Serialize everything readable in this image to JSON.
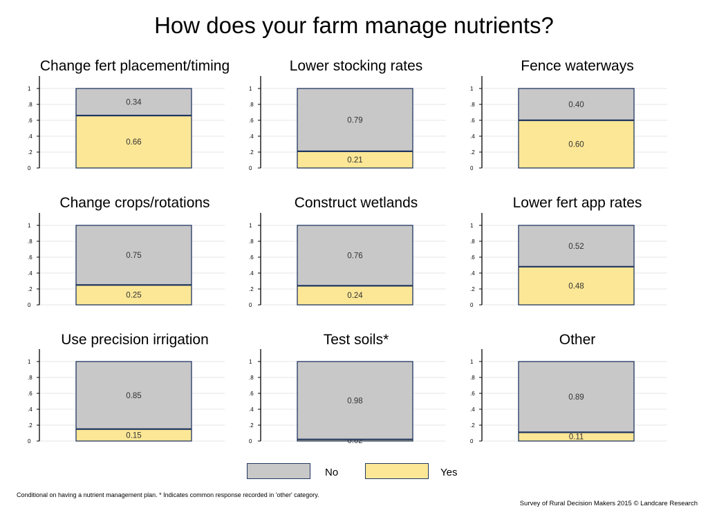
{
  "title": "How does your farm manage nutrients?",
  "colors": {
    "no": "#c8c8c8",
    "yes": "#fce796",
    "outline": "#1f3560",
    "axis": "#000000",
    "grid": "#e4e4e4"
  },
  "legend": [
    {
      "label": "No",
      "color": "#c8c8c8"
    },
    {
      "label": "Yes",
      "color": "#fce796"
    }
  ],
  "footnote": "Conditional on having a nutrient management plan. * Indicates common response recorded in 'other' category.",
  "credit": "Survey of Rural Decision Makers 2015 © Landcare Research",
  "chart_data": [
    {
      "type": "bar",
      "title": "Change fert placement/timing",
      "yticks": [
        "0",
        ".2",
        ".4",
        ".6",
        ".8",
        "1"
      ],
      "ylim": [
        0,
        1
      ],
      "grid": true,
      "stacked": true,
      "series": [
        {
          "name": "Yes",
          "value": 0.66,
          "label": "0.66"
        },
        {
          "name": "No",
          "value": 0.34,
          "label": "0.34"
        }
      ]
    },
    {
      "type": "bar",
      "title": "Lower stocking rates",
      "yticks": [
        "0",
        ".2",
        ".4",
        ".6",
        ".8",
        "1"
      ],
      "ylim": [
        0,
        1
      ],
      "grid": true,
      "stacked": true,
      "series": [
        {
          "name": "Yes",
          "value": 0.21,
          "label": "0.21"
        },
        {
          "name": "No",
          "value": 0.79,
          "label": "0.79"
        }
      ]
    },
    {
      "type": "bar",
      "title": "Fence waterways",
      "yticks": [
        "0",
        ".2",
        ".4",
        ".6",
        ".8",
        "1"
      ],
      "ylim": [
        0,
        1
      ],
      "grid": true,
      "stacked": true,
      "series": [
        {
          "name": "Yes",
          "value": 0.6,
          "label": "0.60"
        },
        {
          "name": "No",
          "value": 0.4,
          "label": "0.40"
        }
      ]
    },
    {
      "type": "bar",
      "title": "Change crops/rotations",
      "yticks": [
        "0",
        ".2",
        ".4",
        ".6",
        ".8",
        "1"
      ],
      "ylim": [
        0,
        1
      ],
      "grid": true,
      "stacked": true,
      "series": [
        {
          "name": "Yes",
          "value": 0.25,
          "label": "0.25"
        },
        {
          "name": "No",
          "value": 0.75,
          "label": "0.75"
        }
      ]
    },
    {
      "type": "bar",
      "title": "Construct wetlands",
      "yticks": [
        "0",
        ".2",
        ".4",
        ".6",
        ".8",
        "1"
      ],
      "ylim": [
        0,
        1
      ],
      "grid": true,
      "stacked": true,
      "series": [
        {
          "name": "Yes",
          "value": 0.24,
          "label": "0.24"
        },
        {
          "name": "No",
          "value": 0.76,
          "label": "0.76"
        }
      ]
    },
    {
      "type": "bar",
      "title": "Lower fert app rates",
      "yticks": [
        "0",
        ".2",
        ".4",
        ".6",
        ".8",
        "1"
      ],
      "ylim": [
        0,
        1
      ],
      "grid": true,
      "stacked": true,
      "series": [
        {
          "name": "Yes",
          "value": 0.48,
          "label": "0.48"
        },
        {
          "name": "No",
          "value": 0.52,
          "label": "0.52"
        }
      ]
    },
    {
      "type": "bar",
      "title": "Use precision irrigation",
      "yticks": [
        "0",
        ".2",
        ".4",
        ".6",
        ".8",
        "1"
      ],
      "ylim": [
        0,
        1
      ],
      "grid": true,
      "stacked": true,
      "series": [
        {
          "name": "Yes",
          "value": 0.15,
          "label": "0.15"
        },
        {
          "name": "No",
          "value": 0.85,
          "label": "0.85"
        }
      ]
    },
    {
      "type": "bar",
      "title": "Test soils*",
      "yticks": [
        "0",
        ".2",
        ".4",
        ".6",
        ".8",
        "1"
      ],
      "ylim": [
        0,
        1
      ],
      "grid": true,
      "stacked": true,
      "series": [
        {
          "name": "Yes",
          "value": 0.02,
          "label": "0.02"
        },
        {
          "name": "No",
          "value": 0.98,
          "label": "0.98"
        }
      ]
    },
    {
      "type": "bar",
      "title": "Other",
      "yticks": [
        "0",
        ".2",
        ".4",
        ".6",
        ".8",
        "1"
      ],
      "ylim": [
        0,
        1
      ],
      "grid": true,
      "stacked": true,
      "series": [
        {
          "name": "Yes",
          "value": 0.11,
          "label": "0.11"
        },
        {
          "name": "No",
          "value": 0.89,
          "label": "0.89"
        }
      ]
    }
  ]
}
